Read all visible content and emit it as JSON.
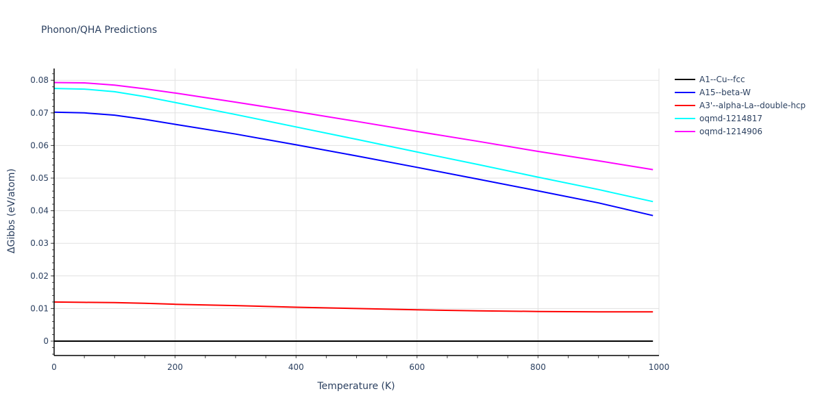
{
  "chart_data": {
    "type": "line",
    "title": "Phonon/QHA Predictions",
    "xlabel": "Temperature (K)",
    "ylabel": "ΔGibbs (eV/atom)",
    "xlim": [
      0,
      1000
    ],
    "ylim": [
      -0.0045,
      0.0835
    ],
    "xticks": [
      0,
      200,
      400,
      600,
      800,
      1000
    ],
    "xtick_labels": [
      "0",
      "200",
      "400",
      "600",
      "800",
      "1000"
    ],
    "yticks": [
      0,
      0.01,
      0.02,
      0.03,
      0.04,
      0.05,
      0.06,
      0.07,
      0.08
    ],
    "ytick_labels": [
      "0",
      "0.01",
      "0.02",
      "0.03",
      "0.04",
      "0.05",
      "0.06",
      "0.07",
      "0.08"
    ],
    "grid": true,
    "legend_position": "right",
    "x": [
      0,
      50,
      100,
      150,
      200,
      300,
      400,
      500,
      600,
      700,
      800,
      900,
      990
    ],
    "series": [
      {
        "name": "A1--Cu--fcc",
        "color": "#000000",
        "values": [
          0,
          0,
          0,
          0,
          0,
          0,
          0,
          0,
          0,
          0,
          0,
          0,
          0
        ]
      },
      {
        "name": "A15--beta-W",
        "color": "#0000ff",
        "values": [
          0.0702,
          0.07,
          0.0693,
          0.068,
          0.0665,
          0.0635,
          0.0602,
          0.0568,
          0.0533,
          0.0497,
          0.0461,
          0.0424,
          0.0385
        ]
      },
      {
        "name": "A3'--alpha-La--double-hcp",
        "color": "#ff0000",
        "values": [
          0.012,
          0.0119,
          0.0118,
          0.0116,
          0.0113,
          0.0109,
          0.0104,
          0.01,
          0.0096,
          0.0093,
          0.0091,
          0.009,
          0.009
        ]
      },
      {
        "name": "oqmd-1214817",
        "color": "#00ffff",
        "values": [
          0.0775,
          0.0773,
          0.0765,
          0.075,
          0.0732,
          0.0695,
          0.0657,
          0.0619,
          0.058,
          0.0542,
          0.0503,
          0.0465,
          0.0428
        ]
      },
      {
        "name": "oqmd-1214906",
        "color": "#ff00ff",
        "values": [
          0.0793,
          0.0792,
          0.0785,
          0.0774,
          0.0761,
          0.0733,
          0.0704,
          0.0674,
          0.0643,
          0.0613,
          0.0582,
          0.0553,
          0.0526
        ]
      }
    ]
  }
}
